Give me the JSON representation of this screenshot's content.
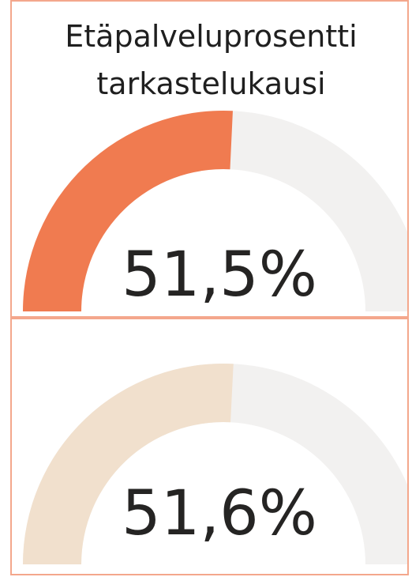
{
  "chart_data": [
    {
      "type": "gauge",
      "title": "Etäpalveluprosentti tarkastelukausi",
      "values": [
        51.5
      ],
      "value_labels": [
        "51,5%"
      ],
      "color": "#f07b50",
      "track_color": "#f2f1f0",
      "ylim": [
        0,
        100
      ]
    },
    {
      "type": "gauge",
      "values": [
        51.6
      ],
      "value_labels": [
        "51,6%"
      ],
      "color": "#f1e0cd",
      "track_color": "#f2f1f0",
      "ylim": [
        0,
        100
      ]
    }
  ]
}
